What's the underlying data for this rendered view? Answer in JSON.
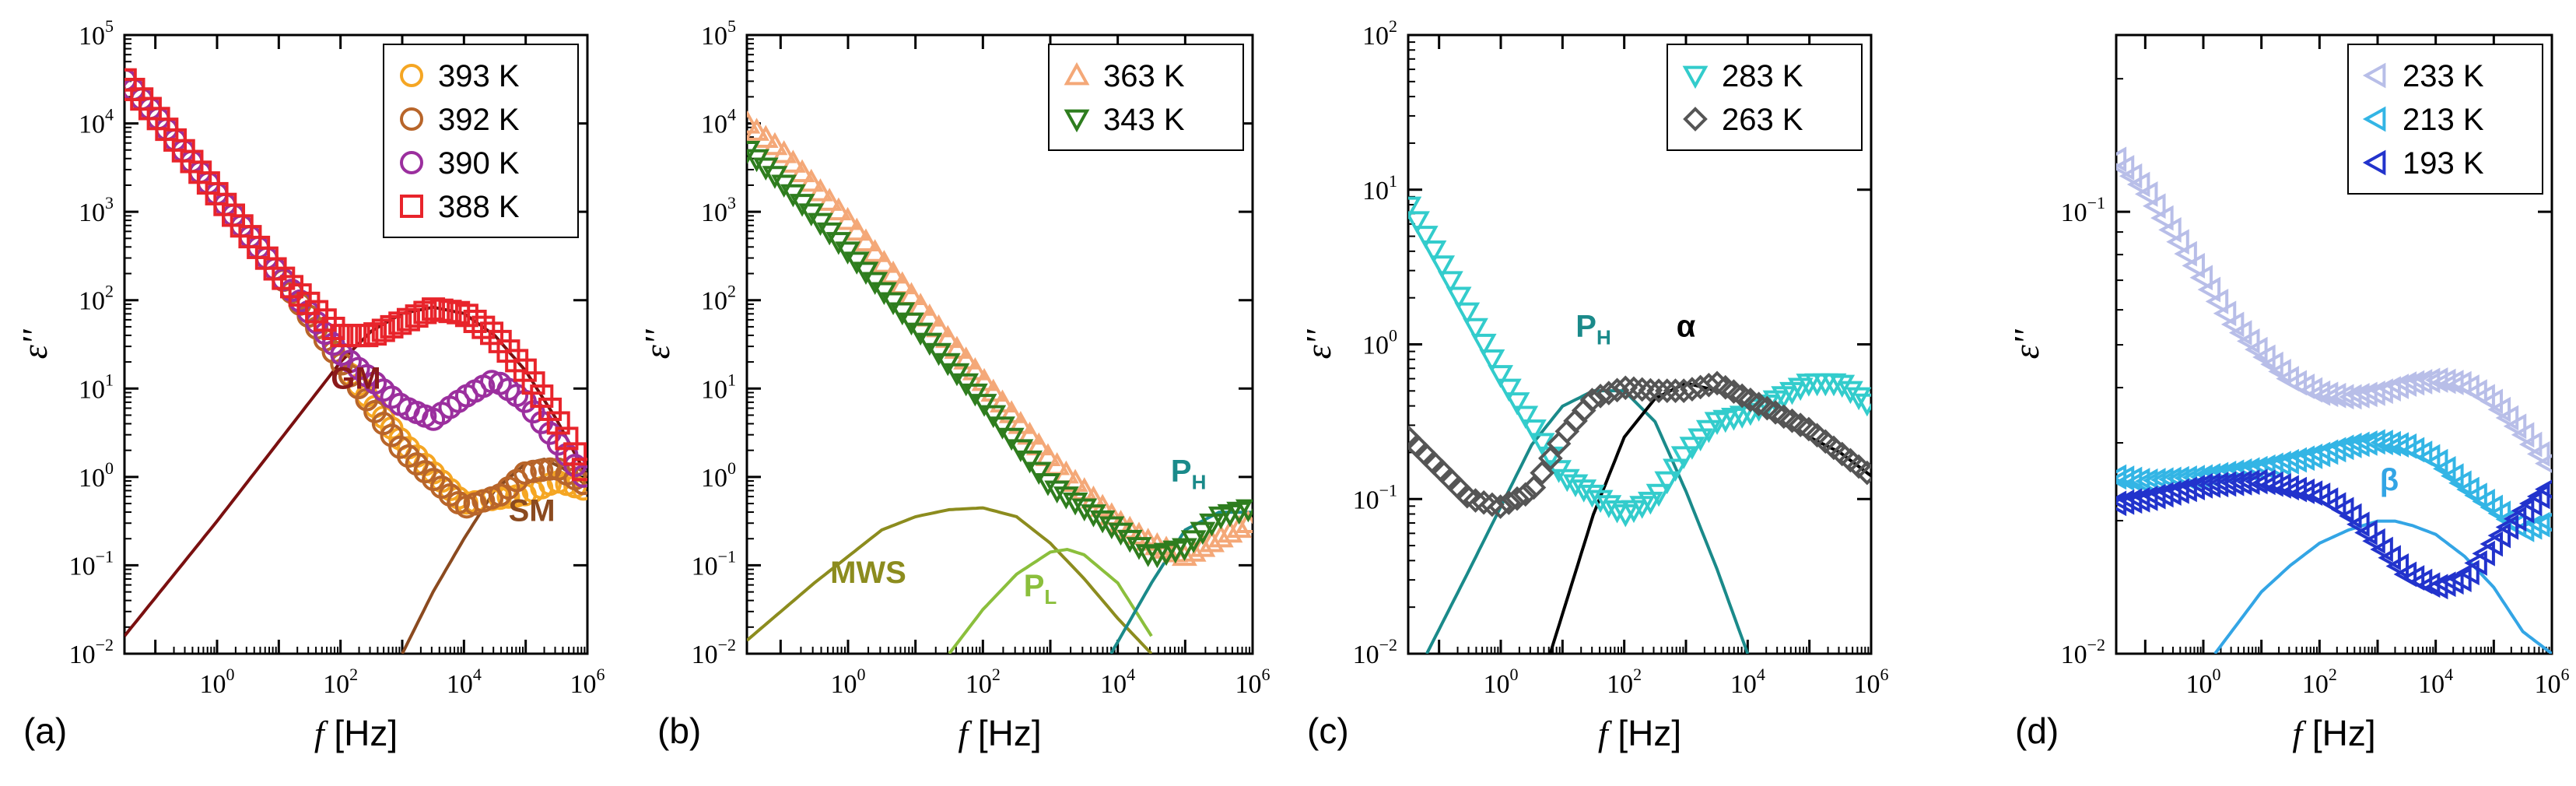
{
  "chart_data": [
    {
      "type": "scatter",
      "panel_label": "(a)",
      "xlabel": "f [Hz]",
      "ylabel": "ε''",
      "x_scale": "log",
      "y_scale": "log",
      "xlim_exp": [
        -1.5,
        6
      ],
      "ylim_exp": [
        -2,
        5
      ],
      "x_tick_exps": [
        0,
        2,
        4,
        6
      ],
      "y_tick_exps": [
        -2,
        -1,
        0,
        1,
        2,
        3,
        4,
        5
      ],
      "legend_position": "top-right",
      "series": [
        {
          "name": "393 K",
          "marker": "circle",
          "color": "#F5A623",
          "log_x": [
            -1.5,
            -1,
            0,
            1,
            2,
            3,
            4,
            5,
            5.5,
            6
          ],
          "log_y": [
            4.5,
            4.1,
            3.2,
            2.3,
            1.3,
            0.4,
            -0.3,
            -0.2,
            -0.05,
            -0.15
          ]
        },
        {
          "name": "392 K",
          "marker": "circle",
          "color": "#B8652A",
          "log_x": [
            -1.5,
            -1,
            0,
            1,
            2,
            3,
            4,
            4.6,
            5,
            5.5,
            6
          ],
          "log_y": [
            4.5,
            4.1,
            3.2,
            2.3,
            1.3,
            0.3,
            -0.35,
            -0.2,
            0.05,
            0.1,
            -0.1
          ]
        },
        {
          "name": "390 K",
          "marker": "circle",
          "color": "#9B2F9E",
          "log_x": [
            -1.5,
            -1,
            0,
            1,
            2,
            3,
            3.5,
            4,
            4.5,
            5,
            5.5,
            6
          ],
          "log_y": [
            4.5,
            4.1,
            3.2,
            2.3,
            1.4,
            0.8,
            0.65,
            0.9,
            1.1,
            0.85,
            0.4,
            -0.05
          ]
        },
        {
          "name": "388 K",
          "marker": "square",
          "color": "#E8242B",
          "log_x": [
            -1.5,
            -1,
            0,
            1,
            2,
            2.5,
            3,
            3.5,
            4,
            4.5,
            5,
            5.5,
            6
          ],
          "log_y": [
            4.5,
            4.1,
            3.2,
            2.3,
            1.6,
            1.6,
            1.75,
            1.9,
            1.85,
            1.6,
            1.2,
            0.65,
            0.0
          ]
        }
      ],
      "fit_curves": [
        {
          "label": "GM",
          "color": "#7A1010",
          "log_x": [
            -1.5,
            0,
            1,
            2,
            2.5,
            3,
            3.5,
            4,
            4.5,
            5,
            5.5,
            6
          ],
          "log_y": [
            -1.8,
            -0.5,
            0.4,
            1.3,
            1.65,
            1.85,
            1.92,
            1.85,
            1.6,
            1.2,
            0.65,
            0.0
          ]
        },
        {
          "label": "SM",
          "color": "#8B4A1F",
          "log_x": [
            3,
            3.5,
            4,
            4.5,
            5,
            5.3,
            5.6,
            6
          ],
          "log_y": [
            -2,
            -1.3,
            -0.7,
            -0.15,
            0.15,
            0.2,
            0.1,
            -0.1
          ]
        }
      ],
      "annotations": [
        {
          "text": "GM",
          "color": "#8B1A1A",
          "log_x": 2.25,
          "log_y": 1.0
        },
        {
          "text": "SM",
          "color": "#8B4A1F",
          "log_x": 5.1,
          "log_y": -0.5
        }
      ]
    },
    {
      "type": "scatter",
      "panel_label": "(b)",
      "xlabel": "f [Hz]",
      "ylabel": "ε''",
      "x_scale": "log",
      "y_scale": "log",
      "xlim_exp": [
        -1.5,
        6
      ],
      "ylim_exp": [
        -2,
        5
      ],
      "x_tick_exps": [
        0,
        2,
        4,
        6
      ],
      "y_tick_exps": [
        -2,
        -1,
        0,
        1,
        2,
        3,
        4,
        5
      ],
      "legend_position": "top-right",
      "series": [
        {
          "name": "363 K",
          "marker": "triangle-up",
          "color": "#F4A878",
          "log_x": [
            -1.5,
            -1,
            0,
            1,
            2,
            3,
            4,
            4.5,
            5,
            5.5,
            6
          ],
          "log_y": [
            4.0,
            3.7,
            2.9,
            2.0,
            1.1,
            0.2,
            -0.5,
            -0.75,
            -0.9,
            -0.7,
            -0.5
          ]
        },
        {
          "name": "343 K",
          "marker": "triangle-down",
          "color": "#2E7D1E",
          "log_x": [
            -1.5,
            -1,
            0,
            1,
            2,
            3,
            4,
            4.5,
            5,
            5.5,
            6
          ],
          "log_y": [
            3.7,
            3.35,
            2.55,
            1.7,
            0.85,
            -0.1,
            -0.6,
            -0.9,
            -0.8,
            -0.45,
            -0.35
          ]
        }
      ],
      "fit_curves": [
        {
          "label": "MWS",
          "color": "#8C8C1E",
          "log_x": [
            -1.5,
            -0.5,
            0,
            0.5,
            1,
            1.5,
            2,
            2.5,
            3,
            3.5,
            4,
            4.5
          ],
          "log_y": [
            -1.85,
            -1.2,
            -0.9,
            -0.6,
            -0.45,
            -0.37,
            -0.35,
            -0.45,
            -0.75,
            -1.15,
            -1.6,
            -2.0
          ]
        },
        {
          "label": "P_L",
          "color": "#8BBF3C",
          "log_x": [
            1.5,
            2,
            2.5,
            3,
            3.25,
            3.5,
            4,
            4.5
          ],
          "log_y": [
            -2.0,
            -1.5,
            -1.1,
            -0.85,
            -0.82,
            -0.88,
            -1.2,
            -1.8
          ]
        },
        {
          "label": "P_H",
          "color": "#1A8A8A",
          "log_x": [
            3.9,
            4.5,
            5,
            5.5,
            6
          ],
          "log_y": [
            -2.0,
            -1.2,
            -0.6,
            -0.4,
            -0.4
          ]
        }
      ],
      "annotations": [
        {
          "text": "MWS",
          "sub": "",
          "color": "#8C8C1E",
          "log_x": 0.3,
          "log_y": -1.2
        },
        {
          "text": "P",
          "sub": "L",
          "color": "#8BBF3C",
          "log_x": 2.85,
          "log_y": -1.35
        },
        {
          "text": "P",
          "sub": "H",
          "color": "#1A8A8A",
          "log_x": 5.05,
          "log_y": -0.05
        }
      ]
    },
    {
      "type": "scatter",
      "panel_label": "(c)",
      "xlabel": "f [Hz]",
      "ylabel": "ε''",
      "x_scale": "log",
      "y_scale": "log",
      "xlim_exp": [
        -1.5,
        6
      ],
      "ylim_exp": [
        -2,
        2
      ],
      "x_tick_exps": [
        0,
        2,
        4,
        6
      ],
      "y_tick_exps": [
        -2,
        -1,
        0,
        1,
        2
      ],
      "legend_position": "top-right",
      "series": [
        {
          "name": "283 K",
          "marker": "triangle-down",
          "color": "#33CCCC",
          "log_x": [
            -1.5,
            -1,
            0,
            1,
            2,
            2.5,
            3,
            3.5,
            4,
            4.5,
            5,
            5.5,
            6
          ],
          "log_y": [
            0.9,
            0.55,
            -0.2,
            -0.85,
            -1.1,
            -1.0,
            -0.7,
            -0.5,
            -0.45,
            -0.35,
            -0.25,
            -0.25,
            -0.4
          ]
        },
        {
          "name": "263 K",
          "marker": "diamond",
          "color": "#555555",
          "log_x": [
            -1.5,
            -1,
            -0.5,
            0,
            0.5,
            1,
            1.5,
            2,
            2.5,
            3,
            3.5,
            4,
            4.5,
            5,
            5.5,
            6
          ],
          "log_y": [
            -0.6,
            -0.8,
            -1.0,
            -1.05,
            -0.95,
            -0.6,
            -0.35,
            -0.28,
            -0.3,
            -0.3,
            -0.25,
            -0.35,
            -0.45,
            -0.55,
            -0.7,
            -0.85
          ]
        }
      ],
      "fit_curves": [
        {
          "label": "P_H",
          "color": "#1A8A8A",
          "log_x": [
            -1.2,
            -0.5,
            0,
            0.5,
            1,
            1.5,
            2,
            2.5,
            3,
            3.5,
            4
          ],
          "log_y": [
            -2.0,
            -1.45,
            -1.05,
            -0.65,
            -0.4,
            -0.3,
            -0.3,
            -0.5,
            -0.95,
            -1.45,
            -2.0
          ]
        },
        {
          "label": "α",
          "color": "#000000",
          "log_x": [
            0.8,
            1.5,
            2,
            2.5,
            3,
            3.5,
            4,
            4.5,
            5,
            5.5,
            6
          ],
          "log_y": [
            -2.0,
            -1.1,
            -0.6,
            -0.35,
            -0.25,
            -0.3,
            -0.4,
            -0.5,
            -0.6,
            -0.7,
            -0.85
          ]
        }
      ],
      "annotations": [
        {
          "text": "P",
          "sub": "H",
          "color": "#1A8A8A",
          "log_x": 1.5,
          "log_y": 0.05
        },
        {
          "text": "α",
          "sub": "",
          "color": "#000000",
          "log_x": 3.0,
          "log_y": 0.05
        }
      ]
    },
    {
      "type": "scatter",
      "panel_label": "(d)",
      "xlabel": "f [Hz]",
      "ylabel": "ε''",
      "x_scale": "log",
      "y_scale": "log",
      "xlim_exp": [
        -1.5,
        6
      ],
      "ylim_exp": [
        -2,
        -0.6
      ],
      "x_tick_exps": [
        0,
        2,
        4,
        6
      ],
      "y_tick_exps": [
        -2,
        -1
      ],
      "legend_position": "top-right",
      "series": [
        {
          "name": "233 K",
          "marker": "triangle-left",
          "color": "#B8BEE8",
          "log_x": [
            -1.5,
            -1,
            -0.5,
            0,
            0.5,
            1,
            1.5,
            2,
            2.5,
            3,
            3.5,
            4,
            4.5,
            5,
            5.5,
            6
          ],
          "log_y": [
            -0.88,
            -0.95,
            -1.05,
            -1.15,
            -1.25,
            -1.32,
            -1.38,
            -1.41,
            -1.42,
            -1.41,
            -1.39,
            -1.38,
            -1.39,
            -1.43,
            -1.5,
            -1.58
          ]
        },
        {
          "name": "213 K",
          "marker": "triangle-left",
          "color": "#33B5E5",
          "log_x": [
            -1.5,
            -1,
            0,
            1,
            2,
            2.5,
            3,
            3.5,
            4,
            4.5,
            5,
            5.5,
            6
          ],
          "log_y": [
            -1.6,
            -1.61,
            -1.6,
            -1.58,
            -1.55,
            -1.53,
            -1.52,
            -1.53,
            -1.56,
            -1.62,
            -1.67,
            -1.72,
            -1.7
          ]
        },
        {
          "name": "193 K",
          "marker": "triangle-left",
          "color": "#2233CC",
          "log_x": [
            -1.5,
            -1,
            0,
            1,
            2,
            2.5,
            3,
            3.5,
            4,
            4.5,
            5,
            5.5,
            6
          ],
          "log_y": [
            -1.66,
            -1.65,
            -1.62,
            -1.61,
            -1.64,
            -1.68,
            -1.75,
            -1.82,
            -1.85,
            -1.83,
            -1.75,
            -1.68,
            -1.62
          ]
        }
      ],
      "fit_curves": [
        {
          "label": "β",
          "color": "#33A5E5",
          "log_x": [
            0.2,
            1,
            1.5,
            2,
            2.5,
            3,
            3.3,
            3.6,
            4,
            4.5,
            5,
            5.5,
            6
          ],
          "log_y": [
            -2.0,
            -1.86,
            -1.8,
            -1.75,
            -1.72,
            -1.7,
            -1.7,
            -1.71,
            -1.73,
            -1.78,
            -1.85,
            -1.95,
            -2.0
          ]
        }
      ],
      "annotations": [
        {
          "text": "β",
          "sub": "",
          "color": "#33A5E5",
          "log_x": 3.2,
          "log_y": -1.63
        }
      ]
    }
  ]
}
